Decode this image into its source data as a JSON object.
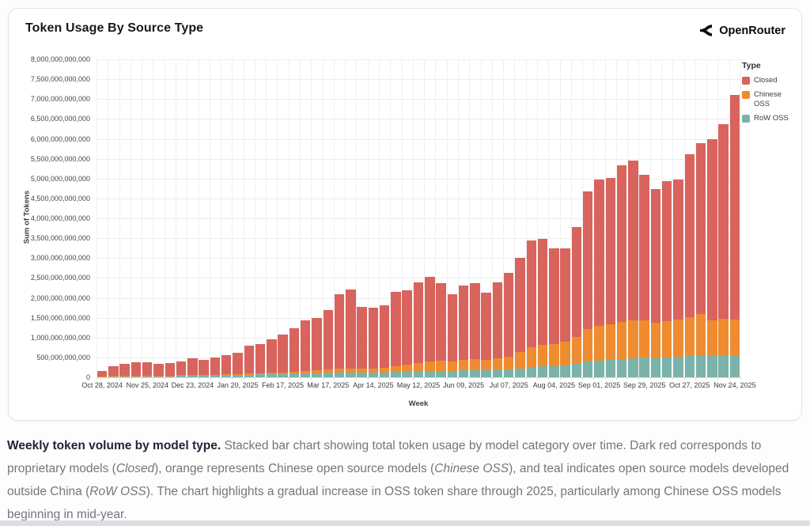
{
  "card": {
    "title": "Token Usage By Source Type",
    "brand": "OpenRouter"
  },
  "axes": {
    "y_title": "Sum of Tokens",
    "x_title": "Week"
  },
  "legend": {
    "title": "Type"
  },
  "chart_data": {
    "type": "bar",
    "stacked": true,
    "title": "Token Usage By Source Type",
    "xlabel": "Week",
    "ylabel": "Sum of Tokens",
    "values_unit": "billions of tokens",
    "ylim_billions": [
      0,
      8000
    ],
    "ytick_step_billions": 500,
    "grid": true,
    "legend_position": "right",
    "legend_title": "Type",
    "stack_order_bottom_to_top": [
      "RoW OSS",
      "Chinese OSS",
      "Closed"
    ],
    "x_tick_interval": 4,
    "visible_x_tick_labels": [
      "Oct 28, 2024",
      "Nov 25, 2024",
      "Dec 23, 2024",
      "Jan 20, 2025",
      "Feb 17, 2025",
      "Mar 17, 2025",
      "Apr 14, 2025",
      "May 12, 2025",
      "Jun 09, 2025",
      "Jul 07, 2025",
      "Aug 04, 2025",
      "Sep 01, 2025",
      "Sep 29, 2025",
      "Oct 27, 2025",
      "Nov 24, 2025"
    ],
    "y_tick_labels": [
      "0",
      "500,000,000,000",
      "1,000,000,000,000",
      "1,500,000,000,000",
      "2,000,000,000,000",
      "2,500,000,000,000",
      "3,000,000,000,000",
      "3,500,000,000,000",
      "4,000,000,000,000",
      "4,500,000,000,000",
      "5,000,000,000,000",
      "5,500,000,000,000",
      "6,000,000,000,000",
      "6,500,000,000,000",
      "7,000,000,000,000",
      "7,500,000,000,000",
      "8,000,000,000,000"
    ],
    "categories": [
      "Oct 28, 2024",
      "Nov 04, 2024",
      "Nov 11, 2024",
      "Nov 18, 2024",
      "Nov 25, 2024",
      "Dec 02, 2024",
      "Dec 09, 2024",
      "Dec 16, 2024",
      "Dec 23, 2024",
      "Dec 30, 2024",
      "Jan 06, 2025",
      "Jan 13, 2025",
      "Jan 20, 2025",
      "Jan 27, 2025",
      "Feb 03, 2025",
      "Feb 10, 2025",
      "Feb 17, 2025",
      "Feb 24, 2025",
      "Mar 03, 2025",
      "Mar 10, 2025",
      "Mar 17, 2025",
      "Mar 24, 2025",
      "Mar 31, 2025",
      "Apr 07, 2025",
      "Apr 14, 2025",
      "Apr 21, 2025",
      "Apr 28, 2025",
      "May 05, 2025",
      "May 12, 2025",
      "May 19, 2025",
      "May 26, 2025",
      "Jun 02, 2025",
      "Jun 09, 2025",
      "Jun 16, 2025",
      "Jun 23, 2025",
      "Jun 30, 2025",
      "Jul 07, 2025",
      "Jul 14, 2025",
      "Jul 21, 2025",
      "Jul 28, 2025",
      "Aug 04, 2025",
      "Aug 11, 2025",
      "Aug 18, 2025",
      "Aug 25, 2025",
      "Sep 01, 2025",
      "Sep 08, 2025",
      "Sep 15, 2025",
      "Sep 22, 2025",
      "Sep 29, 2025",
      "Oct 06, 2025",
      "Oct 13, 2025",
      "Oct 20, 2025",
      "Oct 27, 2025",
      "Nov 03, 2025",
      "Nov 10, 2025",
      "Nov 17, 2025",
      "Nov 24, 2025"
    ],
    "series": [
      {
        "name": "Closed",
        "color": "#d9635d",
        "values": [
          125,
          245,
          290,
          325,
          332,
          294,
          311,
          346,
          410,
          382,
          434,
          487,
          538,
          704,
          726,
          834,
          941,
          1095,
          1279,
          1326,
          1508,
          1877,
          1971,
          1564,
          1522,
          1561,
          1868,
          1875,
          2040,
          2140,
          1955,
          1700,
          1870,
          1910,
          1685,
          1905,
          2105,
          2360,
          2700,
          2680,
          2400,
          2350,
          2770,
          3460,
          3670,
          3670,
          3950,
          4020,
          3670,
          3360,
          3530,
          3520,
          4100,
          4300,
          4570,
          4900,
          5650
        ]
      },
      {
        "name": "Chinese OSS",
        "color": "#ee8c2f",
        "values": [
          5,
          7,
          8,
          9,
          10,
          10,
          11,
          12,
          14,
          14,
          16,
          18,
          22,
          28,
          32,
          38,
          45,
          55,
          65,
          72,
          82,
          95,
          105,
          100,
          110,
          125,
          150,
          175,
          200,
          230,
          250,
          240,
          260,
          280,
          270,
          300,
          330,
          420,
          500,
          540,
          560,
          600,
          680,
          820,
          880,
          900,
          930,
          960,
          930,
          890,
          910,
          930,
          950,
          1050,
          900,
          930,
          900
        ]
      },
      {
        "name": "RoW OSS",
        "color": "#7bb3ab",
        "values": [
          20,
          28,
          32,
          36,
          38,
          36,
          38,
          42,
          46,
          44,
          50,
          55,
          60,
          68,
          72,
          78,
          84,
          90,
          96,
          102,
          110,
          118,
          124,
          116,
          118,
          124,
          132,
          140,
          150,
          160,
          165,
          160,
          170,
          180,
          175,
          185,
          195,
          220,
          250,
          270,
          280,
          300,
          340,
          390,
          420,
          440,
          460,
          480,
          500,
          480,
          500,
          520,
          560,
          540,
          530,
          540,
          550
        ]
      }
    ]
  },
  "caption": {
    "segments": [
      {
        "text": "Weekly token volume by model type.",
        "style": "bold"
      },
      {
        "text": " Stacked bar chart showing total token usage by model category over time. Dark red corresponds to proprietary models (",
        "style": ""
      },
      {
        "text": "Closed",
        "style": "i"
      },
      {
        "text": "), orange represents Chinese open source models (",
        "style": ""
      },
      {
        "text": "Chinese OSS",
        "style": "i"
      },
      {
        "text": "), and teal indicates open source models developed outside China (",
        "style": ""
      },
      {
        "text": "RoW OSS",
        "style": "i"
      },
      {
        "text": "). The chart highlights a gradual increase in OSS token share through 2025, particularly among Chinese OSS models beginning in mid-year.",
        "style": ""
      }
    ]
  }
}
